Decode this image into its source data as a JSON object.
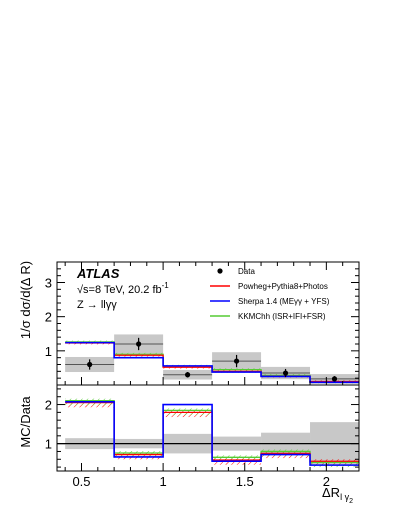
{
  "chart_data": [
    {
      "type": "step",
      "panel": "main",
      "ylabel": "1/σ dσ/d(Δ R)",
      "ylim": [
        0,
        3.6
      ],
      "yticks": [
        1,
        2,
        3
      ],
      "xlim": [
        0.35,
        2.2
      ],
      "bin_edges": [
        0.4,
        0.7,
        1.0,
        1.3,
        1.6,
        1.9,
        2.2
      ],
      "annotations": {
        "experiment": "ATLAS",
        "energy": "√s=8 TeV, 20.2 fb",
        "energy_sup": "-1",
        "process": "Z → llγγ"
      },
      "legend_position": "top-right",
      "data": {
        "name": "Data",
        "color": "#000000",
        "values": [
          0.6,
          1.2,
          0.3,
          0.7,
          0.35,
          0.18
        ],
        "errors": [
          0.15,
          0.18,
          0.08,
          0.18,
          0.12,
          0.08
        ],
        "syst_band": [
          0.22,
          0.28,
          0.14,
          0.26,
          0.18,
          0.14
        ]
      },
      "series": [
        {
          "name": "Powheg+Pythia8+Photos",
          "color": "#ff0000",
          "values": [
            1.23,
            0.87,
            0.52,
            0.4,
            0.26,
            0.1
          ]
        },
        {
          "name": "Sherpa 1.4 (MEγγ + YFS)",
          "color": "#0000ff",
          "values": [
            1.24,
            0.8,
            0.56,
            0.38,
            0.25,
            0.08
          ]
        },
        {
          "name": "KKMChh (ISR+IFI+FSR)",
          "color": "#55cc33",
          "values": [
            1.26,
            0.9,
            0.55,
            0.45,
            0.28,
            0.09
          ]
        }
      ]
    },
    {
      "type": "step",
      "panel": "ratio",
      "ylabel": "MC/Data",
      "xlabel": "ΔR",
      "xlabel_sub": "l γ",
      "xlabel_subsub": "2",
      "ylim": [
        0.3,
        2.5
      ],
      "yticks": [
        1,
        2
      ],
      "xlim": [
        0.35,
        2.2
      ],
      "xticks": [
        0.5,
        1,
        1.5,
        2
      ],
      "xtick_labels": [
        "0.5",
        "1",
        "1.5",
        "2"
      ],
      "bin_edges": [
        0.4,
        0.7,
        1.0,
        1.3,
        1.6,
        1.9,
        2.2
      ],
      "unc_band": [
        0.14,
        0.12,
        0.25,
        0.18,
        0.28,
        0.55
      ],
      "series": [
        {
          "name": "Powheg+Pythia8+Photos",
          "color": "#ff0000",
          "values": [
            2.05,
            0.72,
            1.8,
            0.58,
            0.75,
            0.55
          ]
        },
        {
          "name": "Sherpa 1.4 (MEγγ + YFS)",
          "color": "#0000ff",
          "values": [
            2.07,
            0.66,
            2.0,
            0.55,
            0.72,
            0.45
          ]
        },
        {
          "name": "KKMChh (ISR+IFI+FSR)",
          "color": "#55cc33",
          "values": [
            2.1,
            0.76,
            1.85,
            0.65,
            0.8,
            0.52
          ]
        }
      ]
    }
  ]
}
